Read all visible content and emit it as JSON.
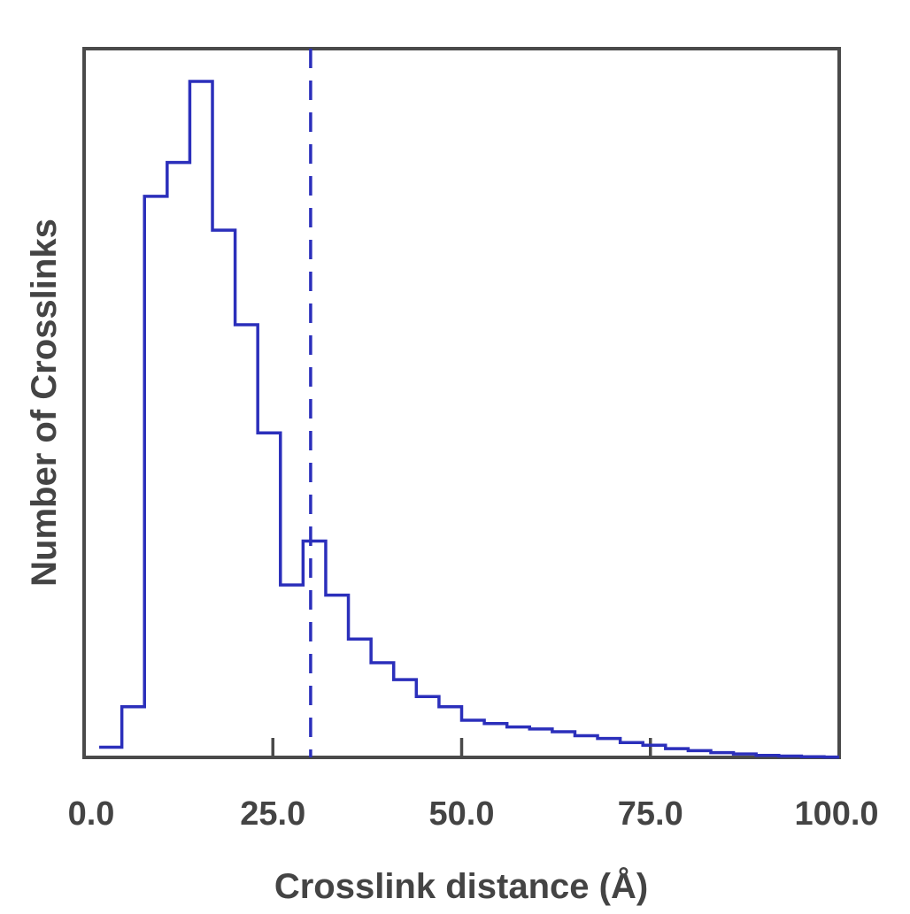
{
  "chart_data": {
    "type": "histogram",
    "xlabel": "Crosslink distance (Å)",
    "ylabel": "Number of Crosslinks",
    "xlim": [
      0,
      100
    ],
    "ylim": [
      0,
      100
    ],
    "y_tick_labels_shown": false,
    "grid": false,
    "legend": "none",
    "x_ticks": [
      0,
      25,
      50,
      75,
      100
    ],
    "x_tick_labels": [
      "0.0",
      "25.0",
      "50.0",
      "75.0",
      "100.0"
    ],
    "bin_edges": [
      2,
      5,
      8,
      11,
      14,
      17,
      20,
      23,
      26,
      29,
      32,
      35,
      38,
      41,
      44,
      47,
      50,
      53,
      56,
      59,
      62,
      65,
      68,
      71,
      74,
      77,
      80,
      83,
      86,
      89,
      92,
      95,
      98,
      100
    ],
    "counts": [
      1.5,
      7.5,
      83,
      88,
      100,
      78,
      64,
      48,
      25.5,
      32,
      24,
      17.5,
      14,
      11.5,
      9,
      7.5,
      5.5,
      5,
      4.5,
      4.2,
      3.8,
      3.2,
      2.8,
      2.2,
      1.8,
      1.3,
      1.0,
      0.7,
      0.5,
      0.3,
      0.2,
      0.1,
      0.05
    ],
    "threshold": {
      "x": 30,
      "style": "dashed"
    },
    "colors": {
      "series": "#2b2fbb",
      "axes": "#4a4a4a",
      "text": "#444444"
    }
  }
}
